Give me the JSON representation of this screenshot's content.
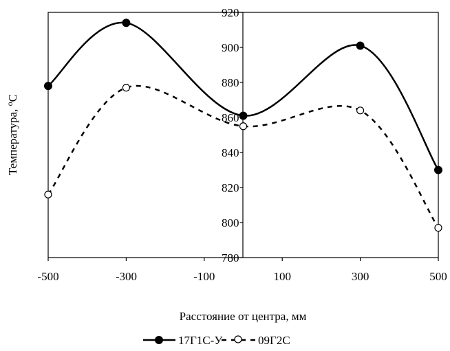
{
  "chart_data": {
    "type": "line",
    "title": "",
    "xlabel": "Расстояние от центра, мм",
    "ylabel_main": "Температура, ",
    "ylabel_sup": "o",
    "ylabel_end": "C",
    "xlim": [
      -500,
      500
    ],
    "ylim": [
      780,
      920
    ],
    "x_ticks": [
      -500,
      -300,
      -100,
      100,
      300,
      500
    ],
    "x_tick_labels": [
      "-500",
      "-300",
      "-100",
      "100",
      "300",
      "500"
    ],
    "y_ticks": [
      780,
      800,
      820,
      840,
      860,
      880,
      900,
      920
    ],
    "y_tick_labels": [
      "780",
      "800",
      "820",
      "840",
      "860",
      "880",
      "900",
      "920"
    ],
    "grid": false,
    "legend_position": "bottom",
    "series": [
      {
        "name": "17Г1С-У",
        "x": [
          -500,
          -300,
          0,
          300,
          500
        ],
        "values": [
          878,
          914,
          861,
          901,
          830
        ],
        "line_style": "solid",
        "marker": "filled-circle",
        "color": "#000000"
      },
      {
        "name": "09Г2С",
        "x": [
          -500,
          -300,
          0,
          300,
          500
        ],
        "values": [
          816,
          877,
          855,
          864,
          797
        ],
        "line_style": "dashed",
        "marker": "open-circle",
        "color": "#000000"
      }
    ]
  }
}
